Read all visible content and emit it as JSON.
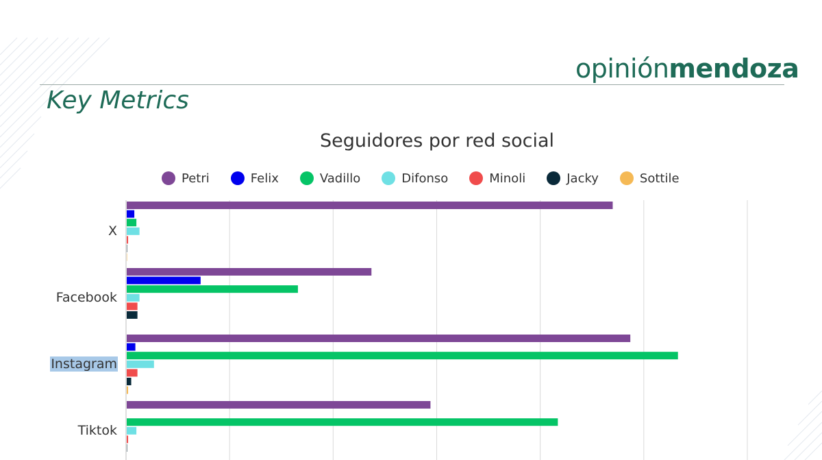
{
  "brand": {
    "light": "opinión",
    "bold": "mendoza"
  },
  "section_title": "Key Metrics",
  "colors": {
    "brand": "#1e6b57",
    "grid": "#d9d9d9",
    "axis": "#bfbfbf",
    "selection": "#a8c9e8"
  },
  "chart_data": {
    "type": "bar",
    "orientation": "horizontal",
    "title": "Seguidores por red social",
    "xlabel": "",
    "ylabel": "",
    "categories": [
      "X",
      "Facebook",
      "Instagram",
      "Tiktok"
    ],
    "selected_category": "Instagram",
    "xlim": [
      0,
      6
    ],
    "grid": true,
    "legend_position": "top",
    "series": [
      {
        "name": "Petri",
        "color": "#7e4796",
        "values": [
          4.7,
          2.37,
          4.87,
          2.94
        ]
      },
      {
        "name": "Felix",
        "color": "#0000ee",
        "values": [
          0.08,
          0.72,
          0.09,
          0.0
        ]
      },
      {
        "name": "Vadillo",
        "color": "#05c466",
        "values": [
          0.1,
          1.66,
          5.33,
          4.17
        ]
      },
      {
        "name": "Difonso",
        "color": "#6fe0e4",
        "values": [
          0.13,
          0.13,
          0.27,
          0.1
        ]
      },
      {
        "name": "Minoli",
        "color": "#f04c4c",
        "values": [
          0.02,
          0.11,
          0.11,
          0.02
        ]
      },
      {
        "name": "Jacky",
        "color": "#0a2a3a",
        "values": [
          0.01,
          0.11,
          0.05,
          0.01
        ]
      },
      {
        "name": "Sottile",
        "color": "#f5b955",
        "values": [
          0.01,
          0.0,
          0.02,
          0.0
        ]
      }
    ]
  }
}
